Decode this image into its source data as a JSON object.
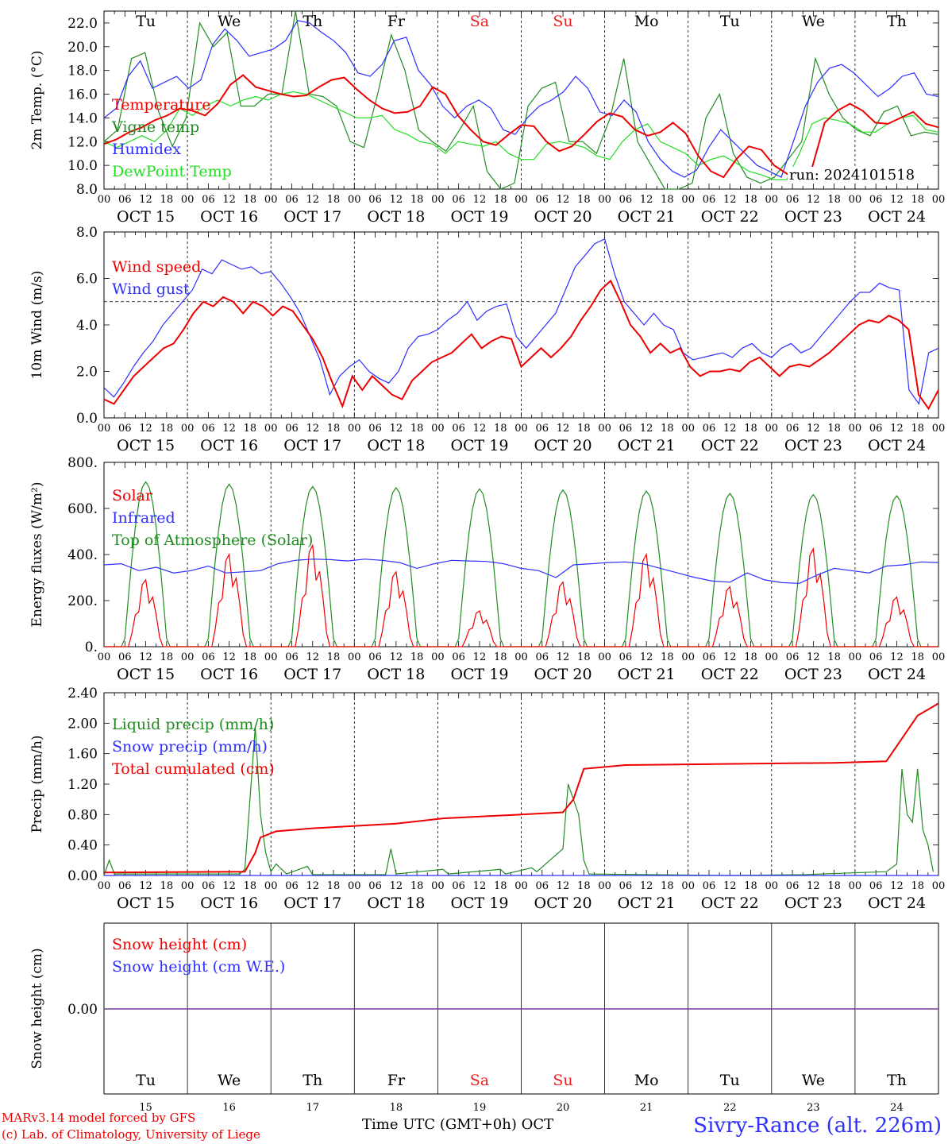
{
  "chart_data": [
    {
      "type": "line",
      "ylabel": "2m Temp. (°C)",
      "ylim": [
        8.0,
        23.0
      ],
      "yticks": [
        8.0,
        10.0,
        12.0,
        14.0,
        16.0,
        18.0,
        20.0,
        22.0
      ],
      "ytick_labels": [
        "8.0",
        "10.0",
        "12.0",
        "14.0",
        "16.0",
        "18.0",
        "20.0",
        "22.0"
      ],
      "day_labels_top": true,
      "x_unit": "hours since Oct 15 00 UTC (3-hourly)",
      "series": [
        {
          "name": "Temperature",
          "color": "#ee0000",
          "values": [
            11.8,
            12.2,
            12.8,
            13.2,
            13.8,
            14.2,
            14.8,
            14.6,
            14.2,
            15.2,
            16.8,
            17.6,
            16.6,
            16.3,
            16.0,
            15.8,
            15.9,
            16.6,
            17.2,
            17.4,
            16.4,
            15.5,
            14.8,
            14.4,
            14.5,
            15.0,
            16.6,
            16.0,
            14.2,
            13.0,
            12.0,
            11.7,
            12.6,
            13.4,
            13.3,
            12.0,
            11.2,
            11.6,
            12.6,
            13.7,
            14.4,
            14.1,
            13.0,
            12.5,
            12.8,
            13.6,
            12.7,
            10.8,
            9.5,
            9.0,
            10.5,
            11.6,
            11.3,
            10.0,
            9.3,
            8.8,
            9.8,
            13.6,
            14.6,
            15.2,
            14.6,
            13.6,
            13.5,
            14.0,
            14.5,
            13.5,
            13.2
          ]
        },
        {
          "name": "Vigne temp",
          "color": "#228b22",
          "values": [
            12.0,
            13.0,
            19.0,
            19.5,
            14.5,
            11.6,
            14.0,
            22.0,
            20.0,
            21.2,
            15.0,
            15.0,
            16.0,
            16.0,
            23.0,
            16.0,
            15.8,
            15.0,
            12.0,
            11.5,
            16.0,
            21.0,
            18.0,
            13.0,
            12.0,
            11.2,
            13.0,
            15.0,
            9.5,
            8.0,
            8.5,
            15.0,
            16.5,
            17.0,
            12.0,
            12.0,
            11.0,
            14.0,
            19.0,
            12.0,
            10.0,
            8.0,
            8.0,
            8.5,
            14.0,
            16.0,
            11.0,
            9.0,
            8.5,
            9.0,
            10.5,
            12.0,
            19.0,
            16.0,
            14.0,
            13.0,
            12.5,
            14.5,
            15.0,
            12.5,
            12.8,
            12.6
          ]
        },
        {
          "name": "Humidex",
          "color": "#2e2eff",
          "values": [
            14.0,
            14.8,
            17.5,
            18.8,
            16.5,
            17.0,
            17.5,
            16.5,
            17.2,
            20.2,
            21.5,
            20.5,
            19.2,
            19.5,
            19.8,
            20.5,
            22.2,
            22.0,
            21.2,
            20.5,
            19.5,
            17.8,
            17.5,
            18.5,
            20.5,
            20.8,
            18.0,
            16.8,
            15.0,
            14.0,
            15.0,
            15.5,
            14.8,
            13.0,
            12.6,
            14.0,
            15.0,
            15.5,
            16.2,
            17.5,
            16.5,
            14.5,
            14.2,
            15.5,
            14.5,
            12.0,
            10.5,
            9.5,
            9.0,
            9.6,
            11.5,
            13.0,
            12.0,
            11.0,
            10.0,
            9.5,
            9.0,
            12.0,
            15.0,
            17.0,
            18.2,
            18.5,
            17.8,
            16.8,
            15.8,
            16.5,
            17.5,
            17.8,
            16.0,
            15.8
          ]
        },
        {
          "name": "DewPoint Temp",
          "color": "#22dd22",
          "values": [
            12.0,
            11.5,
            12.0,
            12.5,
            12.0,
            13.0,
            14.8,
            14.2,
            15.0,
            15.5,
            15.0,
            15.5,
            15.8,
            15.5,
            16.0,
            16.2,
            16.0,
            15.5,
            15.0,
            14.5,
            14.0,
            14.0,
            14.2,
            13.0,
            12.6,
            12.0,
            11.8,
            11.0,
            12.0,
            11.8,
            11.6,
            12.0,
            11.0,
            10.5,
            10.5,
            11.8,
            12.0,
            11.8,
            11.5,
            10.8,
            10.5,
            12.0,
            13.0,
            13.5,
            12.0,
            11.5,
            11.0,
            10.0,
            10.5,
            10.8,
            10.2,
            9.5,
            9.2,
            8.8,
            8.8,
            11.0,
            13.5,
            14.0,
            13.8,
            13.5,
            12.8,
            12.8,
            13.5,
            14.0,
            14.2,
            13.0,
            12.8
          ]
        }
      ],
      "legend_location": "left"
    },
    {
      "type": "line",
      "ylabel": "10m Wind (m/s)",
      "ylim": [
        0.0,
        8.0
      ],
      "yticks": [
        0,
        2,
        4,
        6,
        8
      ],
      "ytick_labels": [
        "0.0",
        "2.0",
        "4.0",
        "6.0",
        "8.0"
      ],
      "reference_line": 5.0,
      "series": [
        {
          "name": "Wind speed",
          "color": "#ee0000",
          "values": [
            0.8,
            0.6,
            1.2,
            1.8,
            2.2,
            2.6,
            3.0,
            3.2,
            3.8,
            4.5,
            5.0,
            4.8,
            5.2,
            5.0,
            4.5,
            5.0,
            4.8,
            4.4,
            4.8,
            4.6,
            4.0,
            3.4,
            2.6,
            1.5,
            0.5,
            1.8,
            1.2,
            1.8,
            1.4,
            1.0,
            0.8,
            1.6,
            2.0,
            2.4,
            2.6,
            2.8,
            3.2,
            3.6,
            3.0,
            3.3,
            3.5,
            3.4,
            2.2,
            2.6,
            3.0,
            2.6,
            3.0,
            3.5,
            4.2,
            4.8,
            5.5,
            5.9,
            5.0,
            4.0,
            3.5,
            2.8,
            3.2,
            2.8,
            3.0,
            2.2,
            1.8,
            2.0,
            2.0,
            2.1,
            2.0,
            2.4,
            2.6,
            2.2,
            1.8,
            2.2,
            2.3,
            2.2,
            2.5,
            2.8,
            3.2,
            3.6,
            4.0,
            4.2,
            4.1,
            4.4,
            4.2,
            3.8,
            1.0,
            0.4,
            1.2
          ]
        },
        {
          "name": "Wind gust",
          "color": "#2e2eff",
          "values": [
            1.3,
            0.9,
            1.5,
            2.2,
            2.8,
            3.3,
            4.0,
            4.5,
            5.0,
            5.5,
            6.4,
            6.2,
            6.8,
            6.6,
            6.4,
            6.5,
            6.2,
            6.3,
            5.8,
            5.2,
            4.5,
            3.5,
            2.5,
            1.0,
            1.8,
            2.2,
            2.5,
            2.0,
            1.7,
            1.5,
            2.0,
            3.0,
            3.5,
            3.6,
            3.8,
            4.2,
            4.5,
            5.0,
            4.2,
            4.6,
            4.8,
            4.9,
            3.5,
            3.0,
            3.5,
            4.0,
            4.5,
            5.5,
            6.5,
            7.0,
            7.5,
            7.7,
            6.2,
            5.0,
            4.5,
            4.0,
            4.5,
            4.0,
            3.8,
            2.8,
            2.5,
            2.6,
            2.7,
            2.8,
            2.6,
            3.0,
            3.2,
            2.8,
            2.6,
            3.0,
            3.2,
            2.8,
            3.0,
            3.5,
            4.0,
            4.5,
            5.0,
            5.4,
            5.4,
            5.8,
            5.6,
            5.5,
            1.2,
            0.6,
            2.8,
            3.0
          ]
        }
      ],
      "legend_location": "left"
    },
    {
      "type": "line",
      "ylabel": "Energy fluxes (W/m²)",
      "ylim": [
        0,
        800
      ],
      "yticks": [
        0,
        200,
        400,
        600,
        800
      ],
      "ytick_labels": [
        "0.",
        "200.",
        "400.",
        "600.",
        "800."
      ],
      "series": [
        {
          "name": "Solar",
          "color": "#ee0000",
          "daily_peaks": [
            290,
            400,
            440,
            325,
            155,
            280,
            400,
            260,
            425,
            215
          ]
        },
        {
          "name": "Infrared",
          "color": "#2e2eff",
          "values": [
            355,
            360,
            330,
            345,
            320,
            330,
            350,
            320,
            325,
            330,
            360,
            375,
            380,
            378,
            372,
            380,
            375,
            365,
            340,
            360,
            375,
            372,
            370,
            360,
            340,
            330,
            300,
            355,
            360,
            365,
            368,
            360,
            340,
            320,
            300,
            285,
            280,
            320,
            290,
            278,
            275,
            310,
            340,
            330,
            320,
            350,
            355,
            368,
            365
          ]
        },
        {
          "name": "Top of Atmosphere (Solar)",
          "color": "#228b22",
          "daily_peaks": [
            715,
            705,
            695,
            690,
            685,
            680,
            675,
            665,
            660,
            655
          ]
        }
      ],
      "legend_location": "left"
    },
    {
      "type": "line",
      "ylabel": "Precip (mm/h)",
      "ylim": [
        0.0,
        2.4
      ],
      "yticks": [
        0.0,
        0.4,
        0.8,
        1.2,
        1.6,
        2.0,
        2.4
      ],
      "ytick_labels": [
        "0.00",
        "0.40",
        "0.80",
        "1.20",
        "1.60",
        "2.00",
        "2.40"
      ],
      "series": [
        {
          "name": "Liquid precip (mm/h)",
          "color": "#228b22",
          "points": [
            [
              0,
              0.0
            ],
            [
              1,
              0.2
            ],
            [
              2,
              0.02
            ],
            [
              26,
              0.02
            ],
            [
              27,
              0.08
            ],
            [
              29,
              1.95
            ],
            [
              30,
              0.8
            ],
            [
              31,
              0.3
            ],
            [
              32,
              0.05
            ],
            [
              33,
              0.15
            ],
            [
              35,
              0.02
            ],
            [
              39,
              0.12
            ],
            [
              40,
              0.01
            ],
            [
              54,
              0.01
            ],
            [
              55,
              0.35
            ],
            [
              56,
              0.02
            ],
            [
              65,
              0.08
            ],
            [
              66,
              0.02
            ],
            [
              76,
              0.08
            ],
            [
              77,
              0.02
            ],
            [
              82,
              0.1
            ],
            [
              83,
              0.05
            ],
            [
              88,
              0.35
            ],
            [
              89,
              1.2
            ],
            [
              90,
              1.0
            ],
            [
              91,
              0.8
            ],
            [
              92,
              0.2
            ],
            [
              93,
              0.02
            ],
            [
              120,
              0.0
            ],
            [
              134,
              0.01
            ],
            [
              150,
              0.05
            ],
            [
              152,
              0.15
            ],
            [
              153,
              1.4
            ],
            [
              154,
              0.8
            ],
            [
              155,
              0.7
            ],
            [
              156,
              1.4
            ],
            [
              157,
              0.6
            ],
            [
              158,
              0.4
            ],
            [
              159,
              0.05
            ]
          ]
        },
        {
          "name": "Snow precip (mm/h)",
          "color": "#2e2eff",
          "points": [
            [
              0,
              0.0
            ],
            [
              160,
              0.0
            ]
          ]
        },
        {
          "name": "Total cumulated (cm)",
          "color": "#ee0000",
          "points": [
            [
              0,
              0.04
            ],
            [
              27,
              0.05
            ],
            [
              29,
              0.3
            ],
            [
              30,
              0.5
            ],
            [
              33,
              0.58
            ],
            [
              40,
              0.62
            ],
            [
              56,
              0.68
            ],
            [
              65,
              0.75
            ],
            [
              80,
              0.8
            ],
            [
              88,
              0.83
            ],
            [
              90,
              1.0
            ],
            [
              92,
              1.4
            ],
            [
              100,
              1.45
            ],
            [
              140,
              1.48
            ],
            [
              150,
              1.5
            ],
            [
              152,
              1.7
            ],
            [
              156,
              2.1
            ],
            [
              160,
              2.26
            ]
          ]
        }
      ],
      "legend_location": "left"
    },
    {
      "type": "line",
      "ylabel": "Snow height (cm)",
      "ytick_labels": [
        "0.00"
      ],
      "series": [
        {
          "name": "Snow height (cm)",
          "color": "#ee0000",
          "values": [
            0.0,
            0.0
          ]
        },
        {
          "name": "Snow height (cm W.E.)",
          "color": "#2e2eff",
          "values": [
            0.0,
            0.0
          ]
        }
      ],
      "legend_location": "left"
    }
  ],
  "days": {
    "weekdays": [
      "Tu",
      "We",
      "Th",
      "Fr",
      "Sa",
      "Su",
      "Mo",
      "Tu",
      "We",
      "Th"
    ],
    "weekend_flags": [
      false,
      false,
      false,
      false,
      true,
      true,
      false,
      false,
      false,
      false
    ],
    "dates": [
      "OCT 15",
      "OCT 16",
      "OCT 17",
      "OCT 18",
      "OCT 19",
      "OCT 20",
      "OCT 21",
      "OCT 22",
      "OCT 23",
      "OCT 24"
    ],
    "day_numbers": [
      "15",
      "16",
      "17",
      "18",
      "19",
      "20",
      "21",
      "22",
      "23",
      "24"
    ],
    "hour_labels": [
      "00",
      "06",
      "12",
      "18"
    ],
    "final_hour_label": "00"
  },
  "colors": {
    "weekday": "#000000",
    "weekend": "#ee2222"
  },
  "footer": {
    "run_label": "run: 2024101518",
    "model_credit": "MARv3.14 model forced by GFS",
    "lab_credit": "(c) Lab. of Climatology, University of Liege",
    "time_label": "Time UTC (GMT+0h) OCT",
    "station": "Sivry-Rance (alt. 226m)"
  }
}
